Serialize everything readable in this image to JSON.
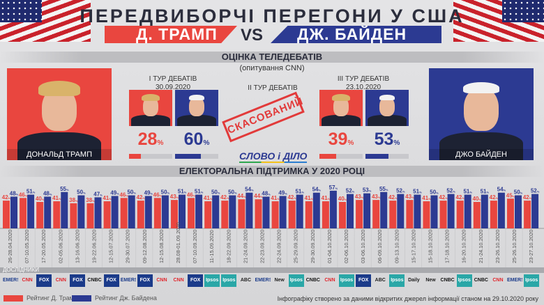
{
  "header": {
    "title": "ПЕРЕДВИБОРЧІ ПЕРЕГОНИ У США",
    "left_name": "Д. ТРАМП",
    "vs": "VS",
    "right_name": "ДЖ. БАЙДЕН"
  },
  "debates": {
    "section_title": "ОЦІНКА ТЕЛЕДЕБАТІВ",
    "subtitle": "(опитування CNN)",
    "trump_caption": "ДОНАЛЬД ТРАМП",
    "biden_caption": "ДЖО БАЙДЕН",
    "rounds": [
      {
        "label": "I ТУР ДЕБАТІВ",
        "date": "30.09.2020",
        "trump": 28,
        "biden": 60,
        "trump_text": "28",
        "biden_text": "60"
      },
      {
        "label": "II ТУР ДЕБАТІВ",
        "stamp": "СКАСОВАНИЙ"
      },
      {
        "label": "III ТУР ДЕБАТІВ",
        "date": "23.10.2020",
        "trump": 39,
        "biden": 53,
        "trump_text": "39",
        "biden_text": "53"
      }
    ],
    "pct_sign": "%",
    "logo": "СЛОВО і ДІЛО"
  },
  "colors": {
    "trump": "#e9463f",
    "biden": "#2c3a92"
  },
  "chart_data": {
    "type": "bar",
    "title": "ЕЛЕКТОРАЛЬНА ПІДТРИМКА У 2020 РОЦІ",
    "categories": [
      "26-28.04.2020",
      "07-10.05.2020",
      "17-20.05.2020",
      "02-05.06.2020",
      "13-16.06.2020",
      "19-22.06.2020",
      "12-15.07.2020",
      "29-30.07.2020",
      "09-12.08.2020",
      "12-15.08.2020",
      "28.08-01.09.2020",
      "07-10.09.2020",
      "11-15.09.2020",
      "18-22.09.2020",
      "21-24.09.2020",
      "22-23.09.2020",
      "22-24.09.2020",
      "25-29.09.2020",
      "29-30.09.2020",
      "01-04.10.2020",
      "02-06.10.2020",
      "03-06.10.2020",
      "06-09.10.2020",
      "09-13.10.2020",
      "15-17.10.2020",
      "15-18.10.2020",
      "17-18.10.2020",
      "16-20.10.2020",
      "21-24.10.2020",
      "23-26.10.2020",
      "25-26.10.2020",
      "23-27.10.2020"
    ],
    "series": [
      {
        "name": "Рейтинг Д. Трампа",
        "values": [
          42,
          46,
          40,
          41,
          38,
          38,
          41,
          46,
          42,
          46,
          43,
          46,
          41,
          42,
          44,
          44,
          41,
          42,
          41,
          41,
          40,
          43,
          43,
          42,
          43,
          41,
          42,
          42,
          40,
          42,
          45,
          42
        ]
      },
      {
        "name": "Рейтинг Дж. Байдена",
        "values": [
          48,
          51,
          48,
          55,
          50,
          47,
          49,
          50,
          49,
          50,
          51,
          51,
          50,
          50,
          54,
          48,
          49,
          51,
          54,
          57,
          52,
          53,
          55,
          52,
          51,
          50,
          52,
          51,
          51,
          54,
          50,
          52
        ]
      }
    ],
    "unit": "%",
    "ylim": [
      0,
      60
    ],
    "pollsters_label": "ДОСЛІДНИКИ",
    "pollsters": [
      "EMERSON",
      "CNN",
      "FOX NEWS",
      "CNN",
      "FOX NEWS",
      "CNBC",
      "FOX NEWS",
      "EMERSON",
      "FOX NEWS",
      "CNN",
      "CNN",
      "FOX NEWS",
      "Ipsos",
      "Ipsos",
      "ABC NEWS / Washington Post",
      "EMERSON",
      "New York Times",
      "Ipsos",
      "CNBC",
      "CNN",
      "Ipsos",
      "FOX NEWS",
      "ABC NEWS / Washington Post",
      "Ipsos",
      "Daily News",
      "New York Times",
      "CNBC",
      "Ipsos",
      "CNBC",
      "CNN",
      "EMERSON",
      "Ipsos"
    ]
  },
  "footer": {
    "note": "Інфографіку створено за даними відкритих джерел інформації станом на 29.10.2020 року"
  }
}
